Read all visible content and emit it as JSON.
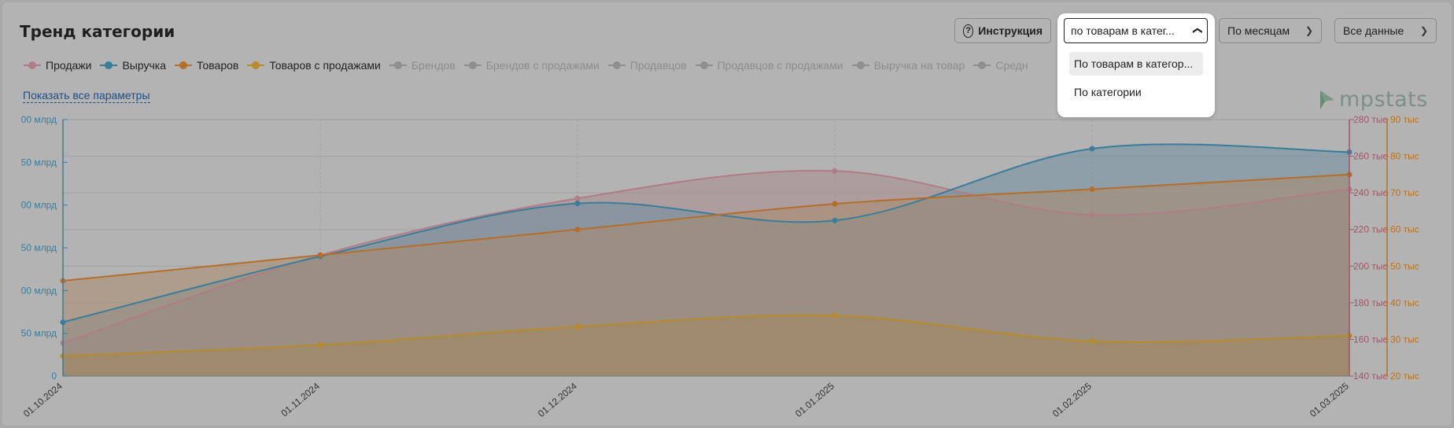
{
  "title": "Тренд категории",
  "toolbar": {
    "instruction_label": "Инструкция",
    "group_by": {
      "value": "по товарам в катег...",
      "options": [
        "По товарам в категор...",
        "По категории"
      ]
    },
    "period_value": "По месяцам",
    "data_value": "Все данные"
  },
  "legend": [
    {
      "label": "Продажи",
      "color": "#b07d86",
      "active": true
    },
    {
      "label": "Выручка",
      "color": "#3a7d9a",
      "active": true
    },
    {
      "label": "Товаров",
      "color": "#b46e2a",
      "active": true
    },
    {
      "label": "Товаров с продажами",
      "color": "#b88a2c",
      "active": true
    },
    {
      "label": "Брендов",
      "color": "#8f8f8f",
      "active": false
    },
    {
      "label": "Брендов с продажами",
      "color": "#8f8f8f",
      "active": false
    },
    {
      "label": "Продавцов",
      "color": "#8f8f8f",
      "active": false
    },
    {
      "label": "Продавцов с продажами",
      "color": "#8f8f8f",
      "active": false
    },
    {
      "label": "Выручка на товар",
      "color": "#8f8f8f",
      "active": false
    },
    {
      "label": "Средн",
      "color": "#8f8f8f",
      "active": false
    }
  ],
  "show_all_label": "Показать все параметры",
  "logo_text": "mpstats",
  "chart_data": {
    "type": "area",
    "x": [
      "01.10.2024",
      "01.11.2024",
      "01.12.2024",
      "01.01.2025",
      "01.02.2025",
      "01.03.2025"
    ],
    "axes": {
      "left": {
        "ticks": [
          "00 млрд",
          "50 млрд",
          "00 млрд",
          "50 млрд",
          "00 млрд",
          "50 млрд",
          "0"
        ],
        "range": [
          0,
          300
        ],
        "color": "#3a7d9a"
      },
      "right1": {
        "ticks": [
          "280 тыс",
          "260 тыс",
          "240 тыс",
          "220 тыс",
          "200 тыс",
          "180 тыс",
          "160 тыс",
          "140 тыс"
        ],
        "range": [
          140,
          280
        ],
        "color": "#a0566a"
      },
      "right2": {
        "ticks": [
          "90 тыс",
          "80 тыс",
          "70 тыс",
          "60 тыс",
          "50 тыс",
          "40 тыс",
          "30 тыс",
          "20 тыс"
        ],
        "range": [
          20,
          90
        ],
        "color": "#b8741e"
      }
    },
    "series": [
      {
        "name": "Продажи",
        "axis": "right1",
        "color": "#b07d86",
        "fill": "#a78a8e",
        "values": [
          158,
          206,
          237,
          252,
          228,
          242
        ]
      },
      {
        "name": "Выручка",
        "axis": "left",
        "color": "#3a7d9a",
        "fill": "#6f8ea1",
        "values": [
          63,
          140,
          202,
          182,
          266,
          262
        ]
      },
      {
        "name": "Товаров",
        "axis": "right2",
        "color": "#b46e2a",
        "fill": "#a98a6c",
        "values": [
          46,
          53,
          60,
          67,
          71,
          75
        ]
      },
      {
        "name": "Товаров с продажами",
        "axis": "right2",
        "color": "#b88a2c",
        "fill": "#a1865a",
        "values": [
          25.5,
          28.5,
          33.5,
          36.5,
          29.5,
          31
        ]
      }
    ]
  }
}
